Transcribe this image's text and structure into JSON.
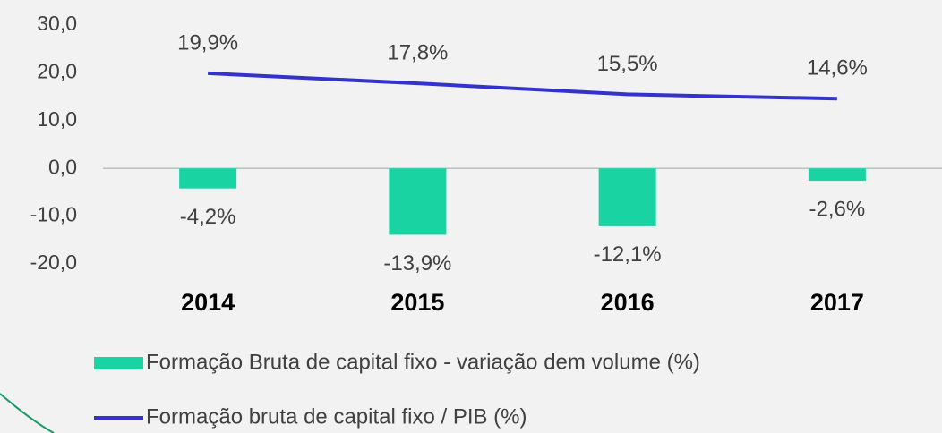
{
  "chart_data": {
    "type": "combo",
    "categories": [
      "2014",
      "2015",
      "2016",
      "2017"
    ],
    "series": [
      {
        "name": "Formação Bruta de capital fixo - variação dem volume (%)",
        "type": "bar",
        "color": "#19d3a2",
        "values": [
          -4.2,
          -13.9,
          -12.1,
          -2.6
        ],
        "value_labels": [
          "-4,2%",
          "-13,9%",
          "-12,1%",
          "-2,6%"
        ]
      },
      {
        "name": "Formação bruta de capital fixo / PIB (%)",
        "type": "line",
        "color": "#3333cc",
        "values": [
          19.9,
          17.8,
          15.5,
          14.6
        ],
        "value_labels": [
          "19,9%",
          "17,8%",
          "15,5%",
          "14,6%"
        ]
      }
    ],
    "ylim": [
      -20,
      30
    ],
    "yticks": [
      {
        "value": -20,
        "label": "-20,0"
      },
      {
        "value": -10,
        "label": "-10,0"
      },
      {
        "value": 0,
        "label": "0,0"
      },
      {
        "value": 10,
        "label": "10,0"
      },
      {
        "value": 20,
        "label": "20,0"
      },
      {
        "value": 30,
        "label": "30,0"
      }
    ],
    "grid": false
  }
}
